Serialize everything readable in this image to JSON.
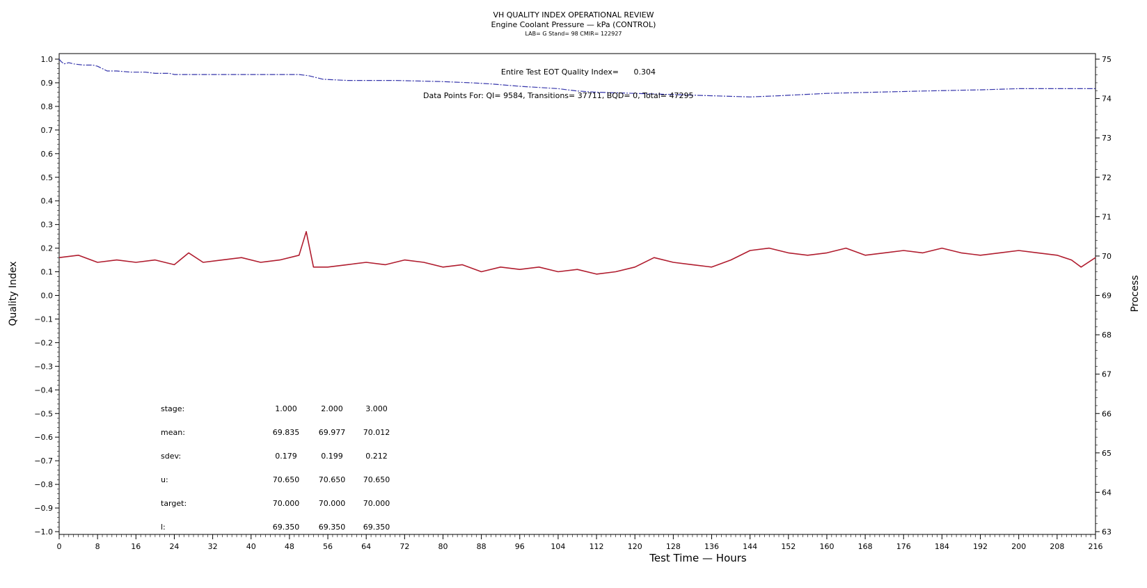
{
  "chart_data": {
    "type": "line",
    "title": "VH QUALITY INDEX OPERATIONAL REVIEW",
    "subtitle": "Engine Coolant Pressure — kPa (CONTROL)",
    "info_line": "LAB= G Stand= 98 CMIR= 122927",
    "xlabel": "Test Time — Hours",
    "ylabel_left": "Quality Index",
    "ylabel_right": "Process",
    "xlim": [
      0,
      216
    ],
    "ylim_left": [
      -1.0,
      1.0
    ],
    "ylim_right": [
      63,
      75
    ],
    "x_ticks": [
      0,
      8,
      16,
      24,
      32,
      40,
      48,
      56,
      64,
      72,
      80,
      88,
      96,
      104,
      112,
      120,
      128,
      136,
      144,
      152,
      160,
      168,
      176,
      184,
      192,
      200,
      208,
      216
    ],
    "y_left_ticks": [
      "1.0",
      "0.9",
      "0.8",
      "0.7",
      "0.6",
      "0.5",
      "0.4",
      "0.3",
      "0.2",
      "0.1",
      "0.0",
      "−0.1",
      "−0.2",
      "−0.3",
      "−0.4",
      "−0.5",
      "−0.6",
      "−0.7",
      "−0.8",
      "−0.9",
      "−1.0"
    ],
    "y_right_ticks": [
      63,
      64,
      65,
      66,
      67,
      68,
      69,
      70,
      71,
      72,
      73,
      74,
      75
    ],
    "series": [
      {
        "axis": "left",
        "color": "#3333aa",
        "style": "dashed",
        "x": [
          0,
          0.4,
          1,
          2,
          3,
          5,
          7,
          8,
          9,
          10,
          12,
          15,
          18,
          20,
          23,
          24,
          30,
          40,
          50,
          52,
          54,
          55,
          60,
          70,
          80,
          86,
          90,
          96,
          104,
          108,
          112,
          120,
          128,
          136,
          144,
          150,
          160,
          170,
          180,
          192,
          200,
          208,
          216
        ],
        "values": [
          1.0,
          0.99,
          0.98,
          0.985,
          0.98,
          0.975,
          0.975,
          0.97,
          0.96,
          0.95,
          0.95,
          0.945,
          0.945,
          0.94,
          0.94,
          0.935,
          0.935,
          0.935,
          0.935,
          0.93,
          0.92,
          0.915,
          0.91,
          0.91,
          0.905,
          0.9,
          0.895,
          0.885,
          0.875,
          0.865,
          0.86,
          0.855,
          0.85,
          0.845,
          0.84,
          0.845,
          0.855,
          0.86,
          0.865,
          0.87,
          0.875,
          0.875,
          0.875
        ]
      },
      {
        "axis": "left",
        "color": "#b01c2e",
        "style": "solid",
        "x": [
          0,
          4,
          8,
          12,
          16,
          20,
          24,
          27,
          30,
          34,
          38,
          42,
          46,
          50,
          51.5,
          53,
          56,
          60,
          64,
          68,
          72,
          76,
          80,
          84,
          88,
          92,
          96,
          100,
          104,
          108,
          112,
          116,
          120,
          124,
          128,
          132,
          136,
          140,
          144,
          148,
          152,
          156,
          160,
          164,
          168,
          172,
          176,
          180,
          184,
          188,
          192,
          196,
          200,
          204,
          208,
          211,
          213,
          216
        ],
        "values": [
          0.16,
          0.17,
          0.14,
          0.15,
          0.14,
          0.15,
          0.13,
          0.18,
          0.14,
          0.15,
          0.16,
          0.14,
          0.15,
          0.17,
          0.27,
          0.12,
          0.12,
          0.13,
          0.14,
          0.13,
          0.15,
          0.14,
          0.12,
          0.13,
          0.1,
          0.12,
          0.11,
          0.12,
          0.1,
          0.11,
          0.09,
          0.1,
          0.12,
          0.16,
          0.14,
          0.13,
          0.12,
          0.15,
          0.19,
          0.2,
          0.18,
          0.17,
          0.18,
          0.2,
          0.17,
          0.18,
          0.19,
          0.18,
          0.2,
          0.18,
          0.17,
          0.18,
          0.19,
          0.18,
          0.17,
          0.15,
          0.12,
          0.16
        ]
      }
    ],
    "annotations": {
      "eot_label": "Entire Test EOT Quality Index=",
      "eot_value": "0.304",
      "points_text": "Data Points For: QI= 9584, Transitions= 37711, BQD= 0, Total= 47295"
    },
    "stats_table": {
      "rows": [
        {
          "label": "stage:",
          "values": [
            "1.000",
            "2.000",
            "3.000"
          ]
        },
        {
          "label": "mean:",
          "values": [
            "69.835",
            "69.977",
            "70.012"
          ]
        },
        {
          "label": "sdev:",
          "values": [
            "0.179",
            "0.199",
            "0.212"
          ]
        },
        {
          "label": "u:",
          "values": [
            "70.650",
            "70.650",
            "70.650"
          ]
        },
        {
          "label": "target:",
          "values": [
            "70.000",
            "70.000",
            "70.000"
          ]
        },
        {
          "label": "l:",
          "values": [
            "69.350",
            "69.350",
            "69.350"
          ]
        }
      ]
    }
  }
}
